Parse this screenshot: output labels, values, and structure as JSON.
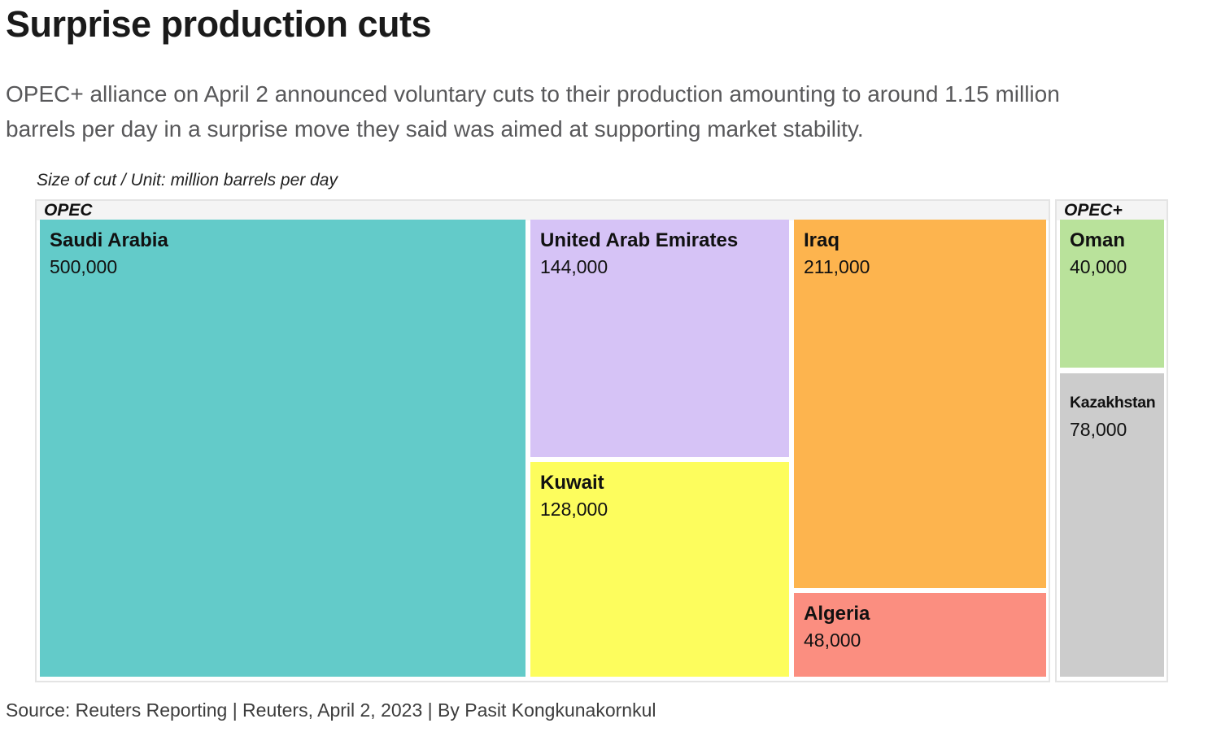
{
  "header": {
    "title": "Surprise production cuts",
    "subtitle": "OPEC+ alliance on April 2 announced voluntary cuts to their production amounting to around 1.15 million barrels per day in a surprise move they said was aimed at supporting market stability."
  },
  "chart": {
    "note": "Size of cut / Unit: million barrels per day"
  },
  "chart_data": {
    "type": "treemap",
    "title": "Surprise production cuts",
    "unit": "million barrels per day",
    "groups": [
      {
        "label": "OPEC",
        "items": [
          {
            "name": "Saudi Arabia",
            "value": 500000,
            "value_label": "500,000",
            "color": "#63cbc9"
          },
          {
            "name": "United Arab Emirates",
            "value": 144000,
            "value_label": "144,000",
            "color": "#d6c3f6"
          },
          {
            "name": "Kuwait",
            "value": 128000,
            "value_label": "128,000",
            "color": "#fdfd5d"
          },
          {
            "name": "Iraq",
            "value": 211000,
            "value_label": "211,000",
            "color": "#fdb44e"
          },
          {
            "name": "Algeria",
            "value": 48000,
            "value_label": "48,000",
            "color": "#fb8e80"
          }
        ]
      },
      {
        "label": "OPEC+",
        "items": [
          {
            "name": "Oman",
            "value": 40000,
            "value_label": "40,000",
            "color": "#b9e29b"
          },
          {
            "name": "Kazakhstan",
            "value": 78000,
            "value_label": "78,000",
            "color": "#cccccc"
          }
        ]
      }
    ]
  },
  "footer": {
    "source": "Source: Reuters Reporting | Reuters, April 2, 2023 | By Pasit Kongkunakornkul"
  }
}
